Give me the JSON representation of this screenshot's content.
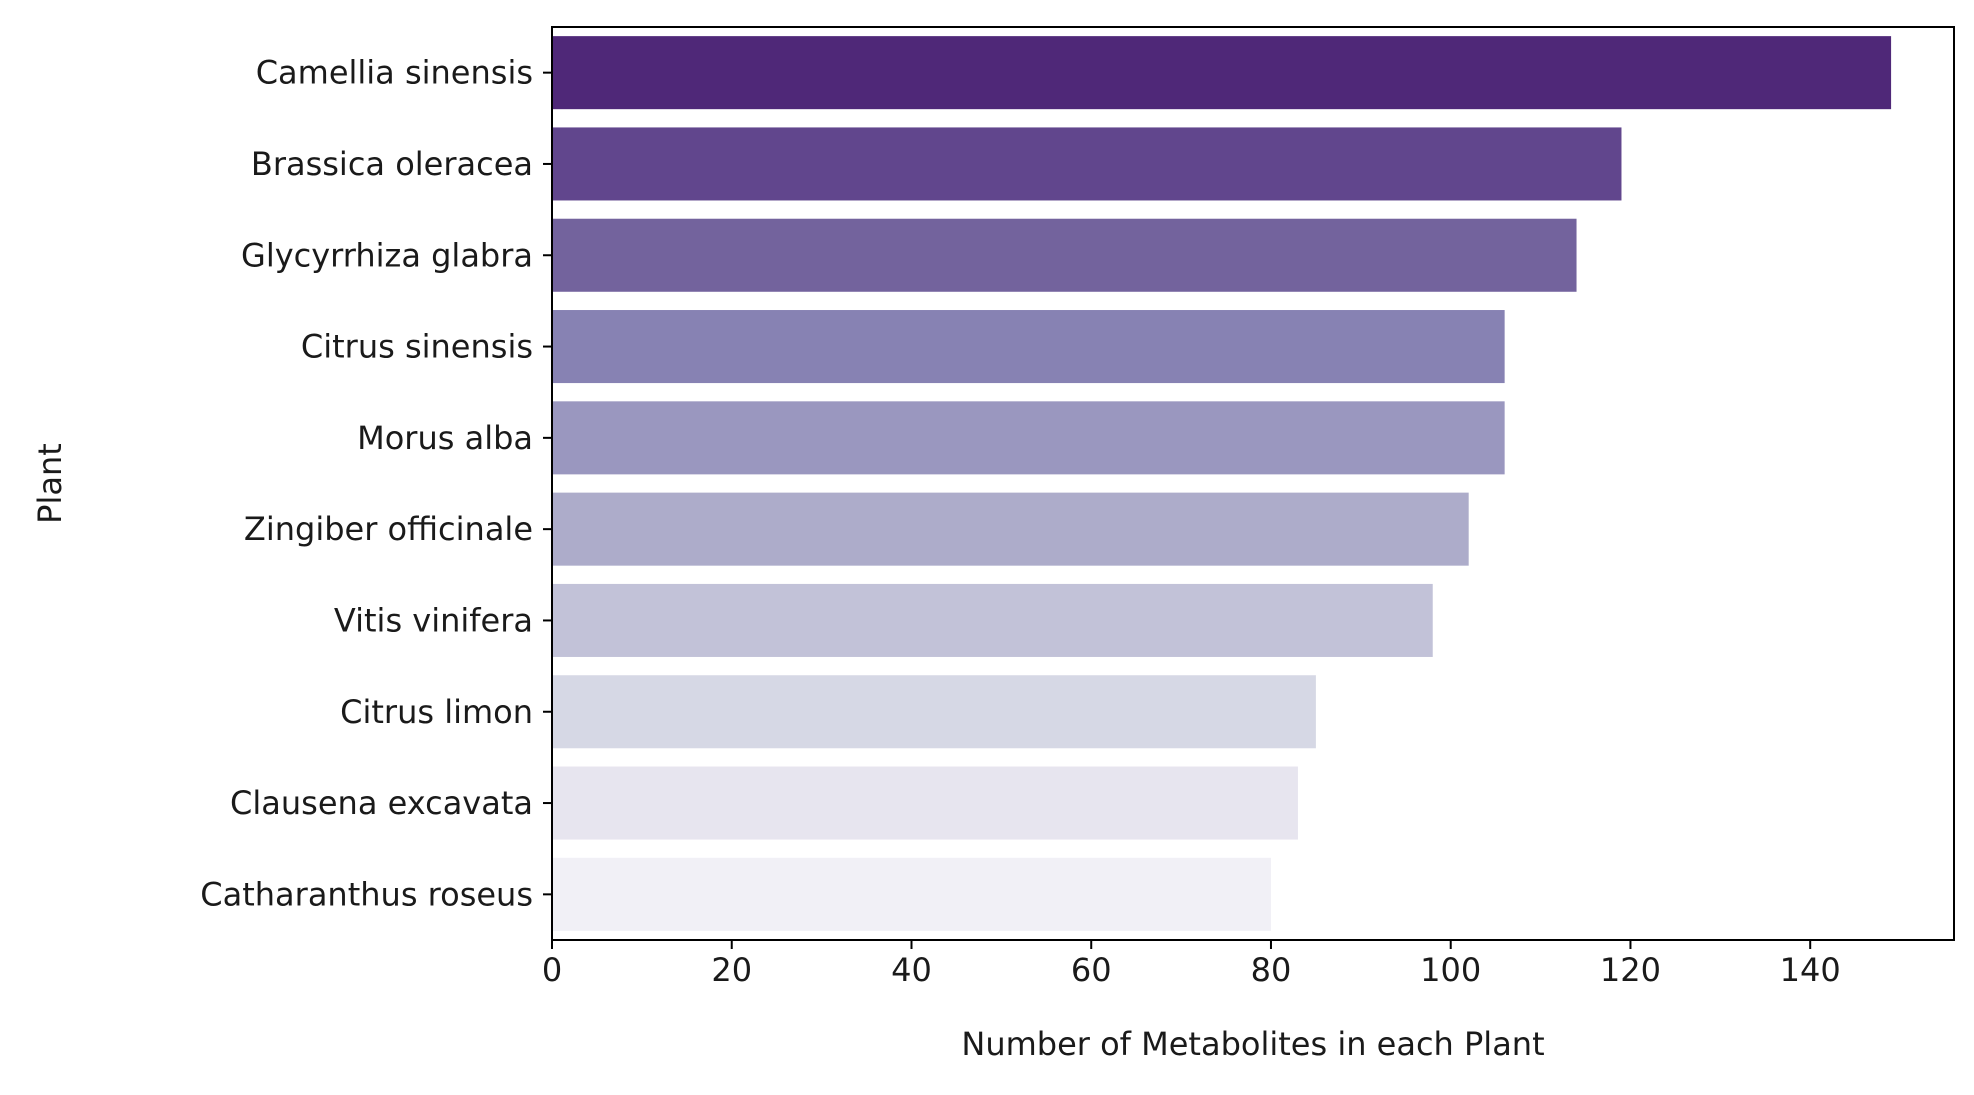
{
  "chart_data": {
    "type": "bar",
    "orientation": "horizontal",
    "title": "",
    "xlabel": "Number of Metabolites in each Plant",
    "ylabel": "Plant",
    "xlim": [
      0,
      156
    ],
    "xticks": [
      0,
      20,
      40,
      60,
      80,
      100,
      120,
      140
    ],
    "grid": false,
    "legend": "none",
    "categories": [
      "Camellia sinensis",
      "Brassica oleracea",
      "Glycyrrhiza glabra",
      "Citrus sinensis",
      "Morus alba",
      "Zingiber officinale",
      "Vitis vinifera",
      "Citrus limon",
      "Clausena excavata",
      "Catharanthus roseus"
    ],
    "values": [
      149,
      119,
      114,
      106,
      106,
      102,
      98,
      85,
      83,
      80
    ],
    "colors": [
      "#4f2878",
      "#61468d",
      "#73639d",
      "#8782b3",
      "#9a97bf",
      "#adacca",
      "#c2c2d8",
      "#d6d8e5",
      "#e7e5ef",
      "#f1f0f6"
    ]
  }
}
